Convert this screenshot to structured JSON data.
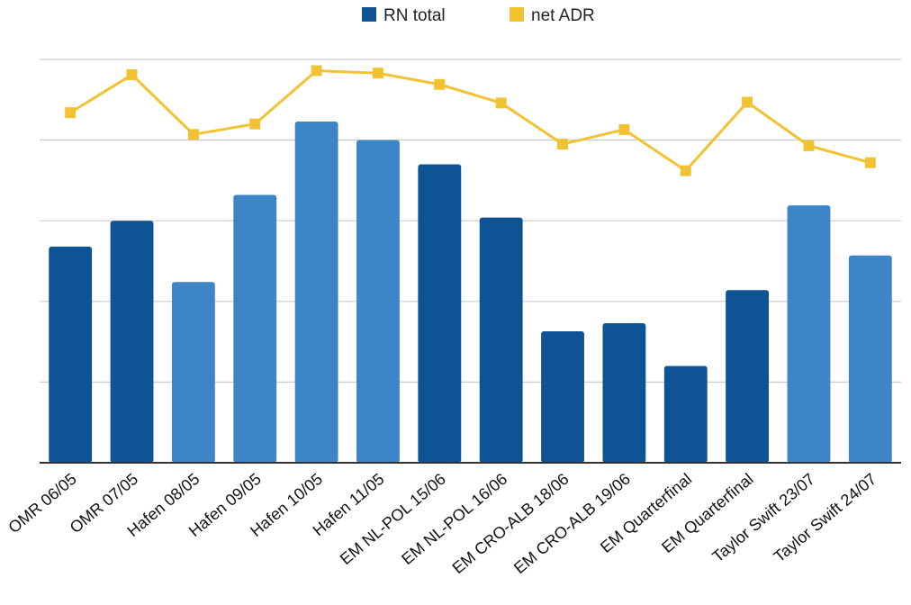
{
  "chart_data": {
    "type": "bar",
    "categories": [
      "OMR 06/05",
      "OMR 07/05",
      "Hafen 08/05",
      "Hafen 09/05",
      "Hafen 10/05",
      "Hafen 11/05",
      "EM NL-POL 15/06",
      "EM NL-POL 16/06",
      "EM CRO-ALB 18/06",
      "EM CRO-ALB 19/06",
      "EM Quarterfinal",
      "EM Quarterfinal",
      "Taylor Swift 23/07",
      "Taylor Swift 24/07"
    ],
    "series": [
      {
        "name": "RN total",
        "type": "bar",
        "axis": "left",
        "color": "#0e5394",
        "values": [
          2.68,
          3.0,
          2.24,
          3.32,
          4.23,
          4.0,
          3.7,
          3.04,
          1.63,
          1.73,
          1.2,
          2.14,
          3.19,
          2.57
        ]
      },
      {
        "name": "net ADR",
        "type": "line",
        "axis": "right",
        "color": "#f1c232",
        "values": [
          4.34,
          4.81,
          4.07,
          4.2,
          4.86,
          4.83,
          4.69,
          4.46,
          3.95,
          4.13,
          3.62,
          4.47,
          3.93,
          3.72
        ]
      }
    ],
    "bar_colors": [
      "#0e5394",
      "#0e5394",
      "#3d85c6",
      "#3d85c6",
      "#3d85c6",
      "#3d85c6",
      "#0e5394",
      "#0e5394",
      "#0e5394",
      "#0e5394",
      "#0e5394",
      "#0e5394",
      "#3d85c6",
      "#3d85c6"
    ],
    "ylim": [
      0,
      5
    ],
    "grid": true,
    "y_tick_labels_shown": false,
    "legend": "top-center",
    "title": "",
    "xlabel": "",
    "ylabel": ""
  }
}
